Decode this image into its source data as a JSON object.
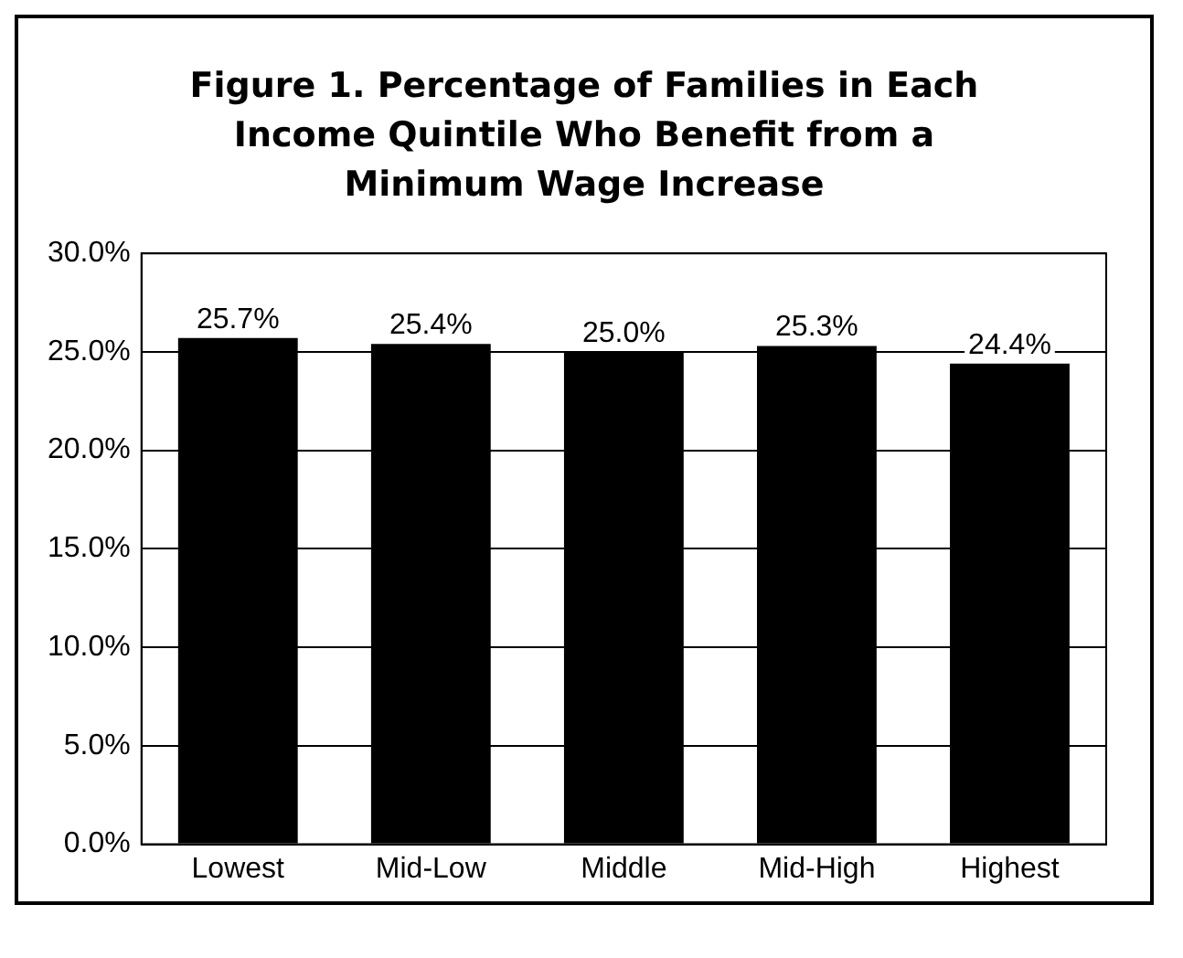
{
  "chart_data": {
    "type": "bar",
    "title": "Figure 1. Percentage of Families in Each Income Quintile Who Benefit from a Minimum Wage Increase",
    "categories": [
      "Lowest",
      "Mid-Low",
      "Middle",
      "Mid-High",
      "Highest"
    ],
    "values": [
      25.7,
      25.4,
      25.0,
      25.3,
      24.4
    ],
    "value_labels": [
      "25.7%",
      "25.4%",
      "25.0%",
      "25.3%",
      "24.4%"
    ],
    "color": "#000000",
    "ylim": [
      0,
      30
    ],
    "yticks": [
      {
        "value": 0,
        "label": "0.0%"
      },
      {
        "value": 5,
        "label": "5.0%"
      },
      {
        "value": 10,
        "label": "10.0%"
      },
      {
        "value": 15,
        "label": "15.0%"
      },
      {
        "value": 20,
        "label": "20.0%"
      },
      {
        "value": 25,
        "label": "25.0%"
      },
      {
        "value": 30,
        "label": "30.0%"
      }
    ],
    "grid": "y",
    "legend": false
  }
}
